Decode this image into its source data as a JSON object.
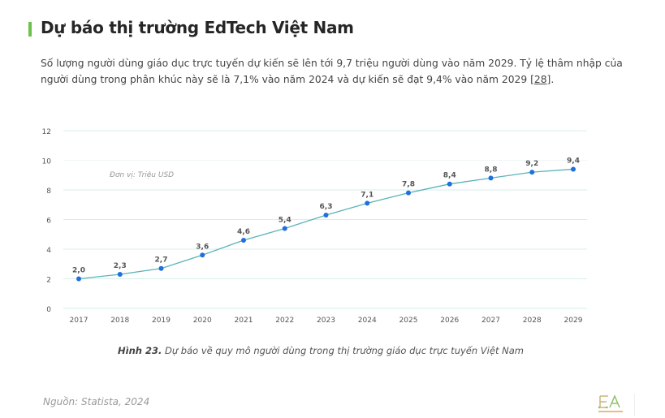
{
  "header": {
    "title": "Dự báo thị trường EdTech Việt Nam",
    "intro": "Số lượng người dùng giáo dục trực tuyến dự kiến sẽ lên tới 9,7 triệu người dùng vào năm 2029. Tỷ lệ thâm nhập của người dùng trong phân khúc này sẽ là 7,1% vào năm 2024 và dự kiến sẽ đạt 9,4% vào năm 2029 ",
    "ref": "[28]",
    "ref_suffix": "."
  },
  "chart_data": {
    "type": "line",
    "annotation": "Đơn vị: Triệu USD",
    "x": [
      "2017",
      "2018",
      "2019",
      "2020",
      "2021",
      "2022",
      "2023",
      "2024",
      "2025",
      "2026",
      "2027",
      "2028",
      "2029"
    ],
    "values": [
      2.0,
      2.3,
      2.7,
      3.6,
      4.6,
      5.4,
      6.3,
      7.1,
      7.8,
      8.4,
      8.8,
      9.2,
      9.4
    ],
    "data_labels": [
      "2,0",
      "2,3",
      "2,7",
      "3,6",
      "4,6",
      "5,4",
      "6,3",
      "7,1",
      "7,8",
      "8,4",
      "8,8",
      "9,2",
      "9,4"
    ],
    "yticks": [
      "0",
      "2",
      "4",
      "6",
      "8",
      "10",
      "12"
    ],
    "ylim": [
      0,
      12
    ],
    "grid": true,
    "line_color": "#5ab3b8",
    "marker_color": "#1f6fe0"
  },
  "caption": {
    "label": "Hình 23.",
    "text": " Dự báo về quy mô người dùng trong thị trường giáo dục trực tuyến Việt Nam"
  },
  "source": "Nguồn: Statista, 2024",
  "logo": {
    "text": "EA",
    "subtext": "EDUTECH AGENCY"
  }
}
